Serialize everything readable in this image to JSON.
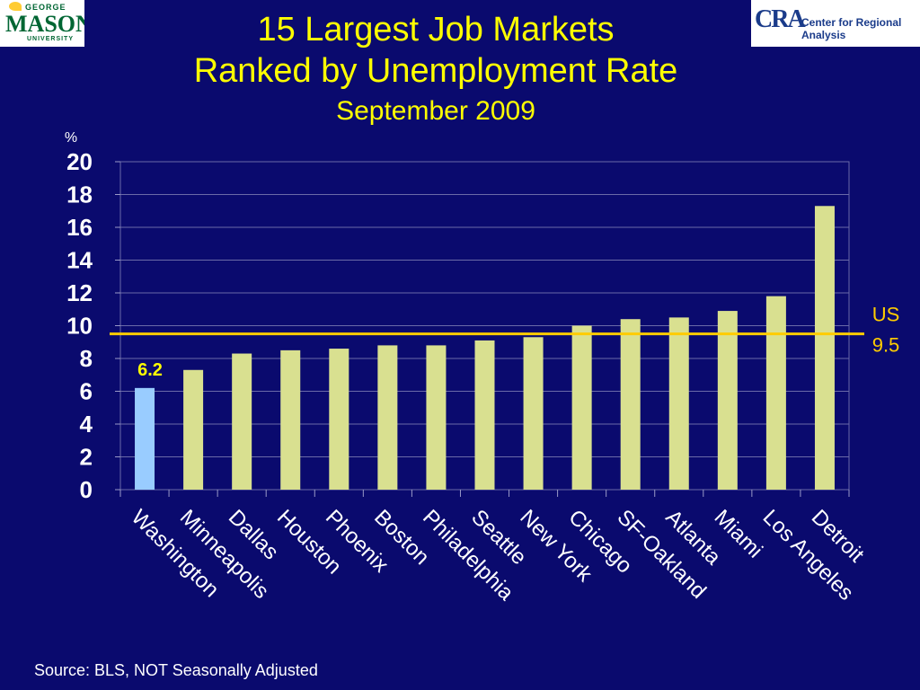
{
  "logos": {
    "left": {
      "line1": "GEORGE",
      "line2": "MASON",
      "line3": "UNIVERSITY"
    },
    "right": {
      "mark": "CRA",
      "text": "Center for Regional Analysis"
    }
  },
  "source": "Source: BLS, NOT Seasonally Adjusted",
  "colors": {
    "background": "#0a0a6e",
    "bar": "#d9e090",
    "highlight_bar": "#99ccff",
    "us_line": "#ffcc00",
    "title": "#ffff00"
  },
  "chart_data": {
    "type": "bar",
    "title": "15 Largest Job Markets",
    "subtitle": "Ranked by Unemployment Rate",
    "subtitle2": "September 2009",
    "ylabel": "%",
    "ylim": [
      0,
      20
    ],
    "yticks": [
      0,
      2,
      4,
      6,
      8,
      10,
      12,
      14,
      16,
      18,
      20
    ],
    "grid": true,
    "categories": [
      "Washington",
      "Minneapolis",
      "Dallas",
      "Houston",
      "Phoenix",
      "Boston",
      "Philadelphia",
      "Seattle",
      "New York",
      "Chicago",
      "SF-Oakland",
      "Atlanta",
      "Miami",
      "Los Angeles",
      "Detroit"
    ],
    "values": [
      6.2,
      7.3,
      8.3,
      8.5,
      8.6,
      8.8,
      8.8,
      9.1,
      9.3,
      10.0,
      10.4,
      10.5,
      10.9,
      11.8,
      17.3
    ],
    "highlight": {
      "category": "Washington",
      "label": "6.2"
    },
    "reference_line": {
      "label1": "US",
      "label2": "9.5",
      "value": 9.5
    }
  }
}
